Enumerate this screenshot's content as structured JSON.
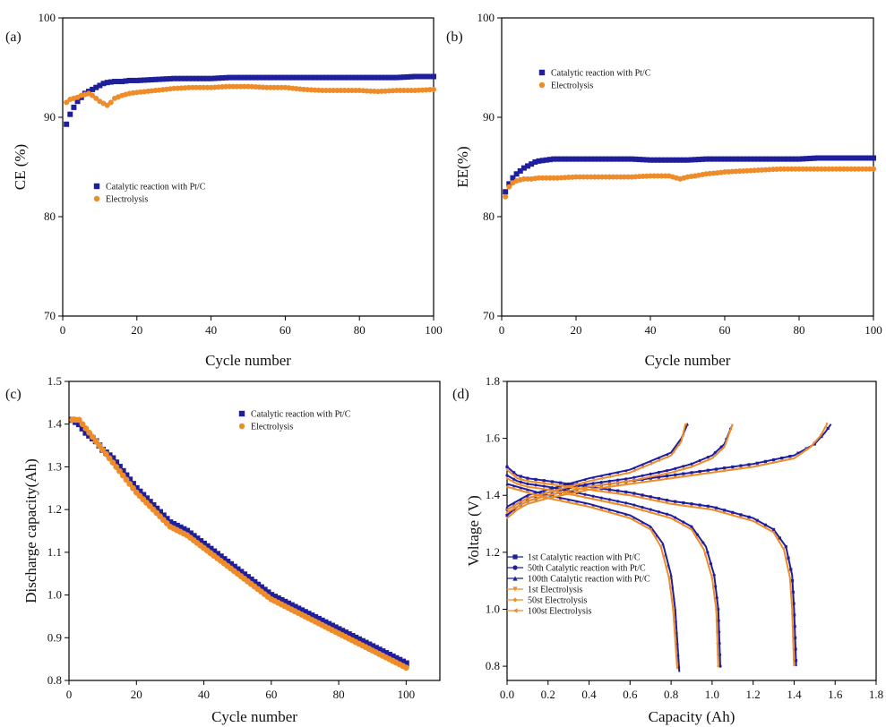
{
  "colors": {
    "catalytic": "#1f1f9e",
    "electrolysis": "#ef8c2a"
  },
  "chart_data": [
    {
      "type": "scatter",
      "panel_label": "(a)",
      "xlabel": "Cycle number",
      "ylabel": "CE (%)",
      "xlim": [
        0,
        100
      ],
      "ylim": [
        70,
        100
      ],
      "xticks": [
        "0",
        "20",
        "40",
        "60",
        "80",
        "100"
      ],
      "yticks": [
        "70",
        "80",
        "90",
        "100"
      ],
      "legend_position": "middle-left",
      "series": [
        {
          "name": "Catalytic reaction with Pt/C",
          "marker": "square",
          "x": [
            1,
            2,
            3,
            4,
            5,
            6,
            7,
            8,
            9,
            10,
            11,
            12,
            14,
            16,
            18,
            20,
            25,
            30,
            35,
            40,
            45,
            50,
            55,
            60,
            65,
            70,
            75,
            80,
            85,
            90,
            95,
            100
          ],
          "y": [
            89.3,
            90.3,
            91.0,
            91.6,
            92.0,
            92.4,
            92.6,
            92.8,
            93.0,
            93.2,
            93.4,
            93.5,
            93.6,
            93.6,
            93.7,
            93.7,
            93.8,
            93.9,
            93.9,
            93.9,
            94.0,
            94.0,
            94.0,
            94.0,
            94.0,
            94.0,
            94.0,
            94.0,
            94.0,
            94.0,
            94.1,
            94.1
          ]
        },
        {
          "name": "Electrolysis",
          "marker": "circle",
          "x": [
            1,
            2,
            3,
            4,
            5,
            6,
            7,
            8,
            9,
            10,
            11,
            12,
            13,
            14,
            16,
            18,
            20,
            25,
            30,
            35,
            40,
            45,
            50,
            55,
            60,
            65,
            70,
            75,
            80,
            85,
            90,
            95,
            100
          ],
          "y": [
            91.5,
            91.8,
            91.9,
            92.0,
            92.2,
            92.3,
            92.4,
            92.2,
            91.9,
            91.6,
            91.4,
            91.2,
            91.5,
            91.9,
            92.2,
            92.4,
            92.5,
            92.7,
            92.9,
            93.0,
            93.0,
            93.1,
            93.1,
            93.0,
            93.0,
            92.8,
            92.7,
            92.7,
            92.7,
            92.6,
            92.7,
            92.7,
            92.8
          ]
        }
      ]
    },
    {
      "type": "scatter",
      "panel_label": "(b)",
      "xlabel": "Cycle number",
      "ylabel": "EE(%)",
      "xlim": [
        0,
        100
      ],
      "ylim": [
        70,
        100
      ],
      "xticks": [
        "0",
        "20",
        "40",
        "60",
        "80",
        "100"
      ],
      "yticks": [
        "70",
        "80",
        "90",
        "100"
      ],
      "legend_position": "top-left",
      "series": [
        {
          "name": "Catalytic reaction with Pt/C",
          "marker": "square",
          "x": [
            1,
            2,
            3,
            4,
            5,
            6,
            7,
            8,
            9,
            10,
            12,
            14,
            16,
            18,
            20,
            25,
            30,
            35,
            40,
            45,
            50,
            55,
            60,
            65,
            70,
            75,
            80,
            85,
            90,
            95,
            100
          ],
          "y": [
            82.5,
            83.3,
            83.9,
            84.3,
            84.6,
            84.9,
            85.1,
            85.3,
            85.5,
            85.6,
            85.7,
            85.8,
            85.8,
            85.8,
            85.8,
            85.8,
            85.8,
            85.8,
            85.7,
            85.7,
            85.7,
            85.8,
            85.8,
            85.8,
            85.8,
            85.8,
            85.8,
            85.9,
            85.9,
            85.9,
            85.9
          ]
        },
        {
          "name": "Electrolysis",
          "marker": "circle",
          "x": [
            1,
            2,
            3,
            4,
            5,
            6,
            8,
            10,
            12,
            15,
            20,
            25,
            30,
            35,
            40,
            45,
            48,
            50,
            52,
            55,
            58,
            60,
            65,
            70,
            75,
            80,
            85,
            90,
            95,
            100
          ],
          "y": [
            82.0,
            83.0,
            83.4,
            83.6,
            83.7,
            83.8,
            83.8,
            83.9,
            83.9,
            83.9,
            84.0,
            84.0,
            84.0,
            84.0,
            84.1,
            84.1,
            83.8,
            84.0,
            84.1,
            84.3,
            84.4,
            84.5,
            84.6,
            84.7,
            84.8,
            84.8,
            84.8,
            84.8,
            84.8,
            84.8
          ]
        }
      ]
    },
    {
      "type": "scatter",
      "panel_label": "(c)",
      "xlabel": "Cycle number",
      "ylabel": "Discharge capacity(Ah)",
      "xlim": [
        0,
        110
      ],
      "ylim": [
        0.8,
        1.5
      ],
      "xticks": [
        "0",
        "20",
        "40",
        "60",
        "80",
        "100"
      ],
      "yticks": [
        "0.8",
        "0.9",
        "1.0",
        "1.1",
        "1.2",
        "1.3",
        "1.4",
        "1.5"
      ],
      "legend_position": "top-right",
      "series": [
        {
          "name": "Catalytic reaction with Pt/C",
          "marker": "square",
          "x": [
            1,
            3,
            5,
            8,
            10,
            13,
            16,
            20,
            25,
            30,
            35,
            40,
            45,
            50,
            55,
            60,
            65,
            70,
            75,
            80,
            85,
            90,
            95,
            100
          ],
          "y": [
            1.41,
            1.4,
            1.38,
            1.36,
            1.34,
            1.32,
            1.29,
            1.25,
            1.21,
            1.17,
            1.15,
            1.12,
            1.09,
            1.06,
            1.03,
            1.0,
            0.98,
            0.96,
            0.94,
            0.92,
            0.9,
            0.88,
            0.86,
            0.84
          ]
        },
        {
          "name": "Electrolysis",
          "marker": "circle",
          "x": [
            1,
            3,
            5,
            8,
            10,
            13,
            16,
            20,
            25,
            30,
            35,
            40,
            45,
            50,
            55,
            60,
            65,
            70,
            75,
            80,
            85,
            90,
            95,
            100
          ],
          "y": [
            1.41,
            1.41,
            1.39,
            1.36,
            1.34,
            1.31,
            1.28,
            1.24,
            1.2,
            1.16,
            1.14,
            1.11,
            1.08,
            1.05,
            1.02,
            0.99,
            0.97,
            0.95,
            0.93,
            0.91,
            0.89,
            0.87,
            0.85,
            0.83
          ]
        }
      ]
    },
    {
      "type": "line",
      "panel_label": "(d)",
      "xlabel": "Capacity (Ah)",
      "ylabel": "Voltage (V)",
      "xlim": [
        0.0,
        1.8
      ],
      "ylim": [
        0.75,
        1.8
      ],
      "xticks": [
        "0.0",
        "0.2",
        "0.4",
        "0.6",
        "0.8",
        "1.0",
        "1.2",
        "1.4",
        "1.6",
        "1.8"
      ],
      "yticks": [
        "0.8",
        "1.0",
        "1.2",
        "1.4",
        "1.6",
        "1.8"
      ],
      "legend_position": "bottom-left",
      "series": [
        {
          "name": "1st Catalytic reaction with Pt/C",
          "marker": "square",
          "color_key": "catalytic",
          "charge": {
            "x": [
              0.0,
              0.05,
              0.1,
              0.2,
              0.4,
              0.6,
              0.8,
              1.0,
              1.2,
              1.4,
              1.5,
              1.55,
              1.58
            ],
            "y": [
              1.33,
              1.36,
              1.38,
              1.4,
              1.43,
              1.45,
              1.47,
              1.49,
              1.51,
              1.54,
              1.58,
              1.62,
              1.65
            ]
          },
          "discharge": {
            "x": [
              0.0,
              0.05,
              0.1,
              0.2,
              0.4,
              0.6,
              0.8,
              1.0,
              1.2,
              1.3,
              1.36,
              1.39,
              1.4,
              1.41
            ],
            "y": [
              1.5,
              1.47,
              1.46,
              1.45,
              1.43,
              1.41,
              1.38,
              1.36,
              1.32,
              1.28,
              1.22,
              1.12,
              1.0,
              0.8
            ]
          }
        },
        {
          "name": "50th Catalytic reaction with Pt/C",
          "marker": "circle",
          "color_key": "catalytic",
          "charge": {
            "x": [
              0.0,
              0.05,
              0.1,
              0.2,
              0.4,
              0.6,
              0.8,
              0.9,
              1.0,
              1.06,
              1.1
            ],
            "y": [
              1.35,
              1.37,
              1.39,
              1.41,
              1.44,
              1.46,
              1.49,
              1.51,
              1.54,
              1.58,
              1.65
            ]
          },
          "discharge": {
            "x": [
              0.0,
              0.05,
              0.1,
              0.2,
              0.4,
              0.6,
              0.8,
              0.9,
              0.97,
              1.01,
              1.03,
              1.04
            ],
            "y": [
              1.47,
              1.45,
              1.44,
              1.43,
              1.4,
              1.37,
              1.33,
              1.29,
              1.22,
              1.12,
              1.0,
              0.8
            ]
          }
        },
        {
          "name": "100th Catalytic reaction with Pt/C",
          "marker": "triangle",
          "color_key": "catalytic",
          "charge": {
            "x": [
              0.0,
              0.05,
              0.1,
              0.2,
              0.4,
              0.6,
              0.7,
              0.8,
              0.85,
              0.88
            ],
            "y": [
              1.36,
              1.38,
              1.4,
              1.42,
              1.46,
              1.49,
              1.52,
              1.55,
              1.6,
              1.65
            ]
          },
          "discharge": {
            "x": [
              0.0,
              0.05,
              0.1,
              0.2,
              0.4,
              0.6,
              0.7,
              0.76,
              0.8,
              0.82,
              0.84
            ],
            "y": [
              1.44,
              1.43,
              1.42,
              1.4,
              1.37,
              1.33,
              1.29,
              1.23,
              1.12,
              1.0,
              0.78
            ]
          }
        },
        {
          "name": "1st Electrolysis",
          "marker": "triangle-down",
          "color_key": "electrolysis",
          "charge": {
            "x": [
              0.0,
              0.05,
              0.1,
              0.2,
              0.4,
              0.6,
              0.8,
              1.0,
              1.2,
              1.4,
              1.48,
              1.53,
              1.56
            ],
            "y": [
              1.32,
              1.35,
              1.37,
              1.39,
              1.42,
              1.44,
              1.46,
              1.48,
              1.5,
              1.53,
              1.57,
              1.61,
              1.65
            ]
          },
          "discharge": {
            "x": [
              0.0,
              0.05,
              0.1,
              0.2,
              0.4,
              0.6,
              0.8,
              1.0,
              1.2,
              1.3,
              1.35,
              1.38,
              1.39,
              1.4
            ],
            "y": [
              1.49,
              1.46,
              1.45,
              1.44,
              1.42,
              1.4,
              1.37,
              1.35,
              1.31,
              1.27,
              1.21,
              1.11,
              1.0,
              0.8
            ]
          }
        },
        {
          "name": "50st Electrolysis",
          "marker": "diamond",
          "color_key": "electrolysis",
          "charge": {
            "x": [
              0.0,
              0.05,
              0.1,
              0.2,
              0.4,
              0.6,
              0.8,
              0.9,
              1.0,
              1.06,
              1.1
            ],
            "y": [
              1.34,
              1.36,
              1.38,
              1.4,
              1.43,
              1.45,
              1.48,
              1.5,
              1.53,
              1.57,
              1.65
            ]
          },
          "discharge": {
            "x": [
              0.0,
              0.05,
              0.1,
              0.2,
              0.4,
              0.6,
              0.8,
              0.9,
              0.96,
              1.0,
              1.02,
              1.03
            ],
            "y": [
              1.46,
              1.44,
              1.43,
              1.42,
              1.39,
              1.36,
              1.32,
              1.28,
              1.21,
              1.11,
              1.0,
              0.8
            ]
          }
        },
        {
          "name": "100st Electrolysis",
          "marker": "triangle-left",
          "color_key": "electrolysis",
          "charge": {
            "x": [
              0.0,
              0.05,
              0.1,
              0.2,
              0.4,
              0.6,
              0.7,
              0.8,
              0.85,
              0.87
            ],
            "y": [
              1.35,
              1.37,
              1.39,
              1.41,
              1.45,
              1.48,
              1.51,
              1.54,
              1.59,
              1.65
            ]
          },
          "discharge": {
            "x": [
              0.0,
              0.05,
              0.1,
              0.2,
              0.4,
              0.6,
              0.7,
              0.75,
              0.79,
              0.81,
              0.83
            ],
            "y": [
              1.43,
              1.42,
              1.41,
              1.39,
              1.36,
              1.32,
              1.28,
              1.22,
              1.11,
              1.0,
              0.79
            ]
          }
        }
      ]
    }
  ]
}
